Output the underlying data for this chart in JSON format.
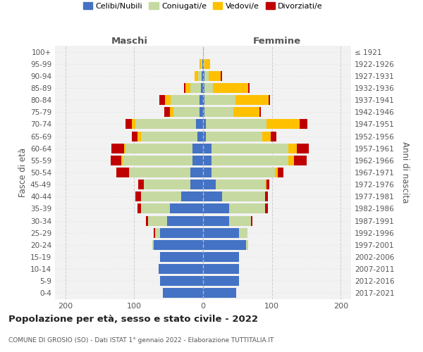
{
  "age_groups": [
    "0-4",
    "5-9",
    "10-14",
    "15-19",
    "20-24",
    "25-29",
    "30-34",
    "35-39",
    "40-44",
    "45-49",
    "50-54",
    "55-59",
    "60-64",
    "65-69",
    "70-74",
    "75-79",
    "80-84",
    "85-89",
    "90-94",
    "95-99",
    "100+"
  ],
  "birth_years": [
    "2017-2021",
    "2012-2016",
    "2007-2011",
    "2002-2006",
    "1997-2001",
    "1992-1996",
    "1987-1991",
    "1982-1986",
    "1977-1981",
    "1972-1976",
    "1967-1971",
    "1962-1966",
    "1957-1961",
    "1952-1956",
    "1947-1951",
    "1942-1946",
    "1937-1941",
    "1932-1936",
    "1927-1931",
    "1922-1926",
    "≤ 1921"
  ],
  "males": {
    "celibi": [
      58,
      62,
      65,
      62,
      72,
      62,
      52,
      48,
      32,
      18,
      18,
      15,
      15,
      8,
      10,
      5,
      5,
      3,
      2,
      1,
      0
    ],
    "coniugati": [
      0,
      0,
      0,
      0,
      2,
      8,
      28,
      42,
      58,
      68,
      88,
      102,
      98,
      82,
      88,
      38,
      42,
      15,
      5,
      2,
      0
    ],
    "vedovi": [
      0,
      0,
      0,
      0,
      0,
      0,
      0,
      0,
      0,
      0,
      2,
      2,
      2,
      5,
      5,
      5,
      8,
      8,
      5,
      2,
      0
    ],
    "divorziati": [
      0,
      0,
      0,
      0,
      0,
      2,
      3,
      5,
      8,
      8,
      18,
      15,
      18,
      8,
      10,
      8,
      8,
      2,
      0,
      0,
      0
    ]
  },
  "females": {
    "celibi": [
      48,
      52,
      52,
      52,
      62,
      52,
      38,
      38,
      28,
      18,
      12,
      12,
      12,
      4,
      4,
      2,
      2,
      2,
      2,
      1,
      0
    ],
    "coniugati": [
      0,
      0,
      0,
      0,
      4,
      12,
      32,
      52,
      62,
      72,
      92,
      112,
      112,
      82,
      88,
      42,
      45,
      12,
      6,
      1,
      0
    ],
    "vedovi": [
      0,
      0,
      0,
      0,
      0,
      0,
      0,
      0,
      0,
      2,
      5,
      8,
      12,
      12,
      48,
      38,
      48,
      52,
      18,
      8,
      1
    ],
    "divorziati": [
      0,
      0,
      0,
      0,
      0,
      0,
      2,
      4,
      4,
      4,
      8,
      18,
      18,
      8,
      12,
      2,
      2,
      2,
      2,
      0,
      0
    ]
  },
  "colors": {
    "celibi": "#4472c4",
    "coniugati": "#c5d9a0",
    "vedovi": "#ffc000",
    "divorziati": "#c00000"
  },
  "xlim": [
    -215,
    215
  ],
  "xticks": [
    -200,
    -100,
    0,
    100,
    200
  ],
  "xticklabels": [
    "200",
    "100",
    "0",
    "100",
    "200"
  ],
  "title": "Popolazione per età, sesso e stato civile - 2022",
  "subtitle": "COMUNE DI GROSIO (SO) - Dati ISTAT 1° gennaio 2022 - Elaborazione TUTTITALIA.IT",
  "ylabel_left": "Fasce di età",
  "ylabel_right": "Anni di nascita",
  "label_maschi": "Maschi",
  "label_femmine": "Femmine",
  "legend_labels": [
    "Celibi/Nubili",
    "Coniugati/e",
    "Vedovi/e",
    "Divorziati/e"
  ],
  "bg_color": "#f2f2f2"
}
